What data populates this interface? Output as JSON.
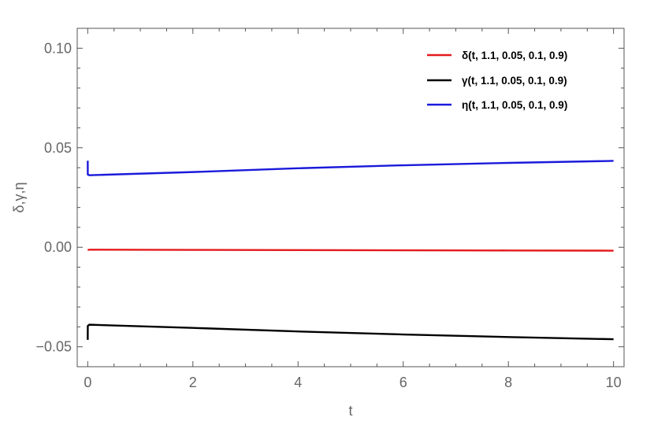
{
  "chart_data": {
    "type": "line",
    "xlabel": "t",
    "ylabel": "δ,γ,η",
    "xlim": [
      -0.2,
      10.2
    ],
    "ylim": [
      -0.06,
      0.11
    ],
    "xticks": [
      0,
      2,
      4,
      6,
      8,
      10
    ],
    "xtick_labels": [
      "0",
      "2",
      "4",
      "6",
      "8",
      "10"
    ],
    "yticks": [
      -0.05,
      0.0,
      0.05,
      0.1
    ],
    "ytick_labels": [
      "−0.05",
      "0.00",
      "0.05",
      "0.10"
    ],
    "legend_position": "top-right",
    "grid": false,
    "series": [
      {
        "name": "δ(t, 1.1, 0.05, 0.1, 0.9)",
        "color": "#e41a1c",
        "x": [
          0,
          0.03,
          2,
          4,
          6,
          8,
          10
        ],
        "y": [
          -0.0014,
          -0.0012,
          -0.0013,
          -0.0014,
          -0.0015,
          -0.0016,
          -0.0017
        ]
      },
      {
        "name": "γ(t, 1.1, 0.05, 0.1, 0.9)",
        "color": "#000000",
        "x": [
          0,
          0.001,
          0.03,
          2,
          4,
          6,
          8,
          10
        ],
        "y": [
          -0.0465,
          -0.0395,
          -0.0389,
          -0.0405,
          -0.0423,
          -0.0438,
          -0.0451,
          -0.0462
        ]
      },
      {
        "name": "η(t, 1.1, 0.05, 0.1, 0.9)",
        "color": "#1a1adb",
        "x": [
          0,
          0.001,
          0.03,
          2,
          4,
          6,
          8,
          10
        ],
        "y": [
          0.0435,
          0.0365,
          0.0362,
          0.0378,
          0.0397,
          0.0412,
          0.0424,
          0.0434
        ]
      }
    ]
  }
}
